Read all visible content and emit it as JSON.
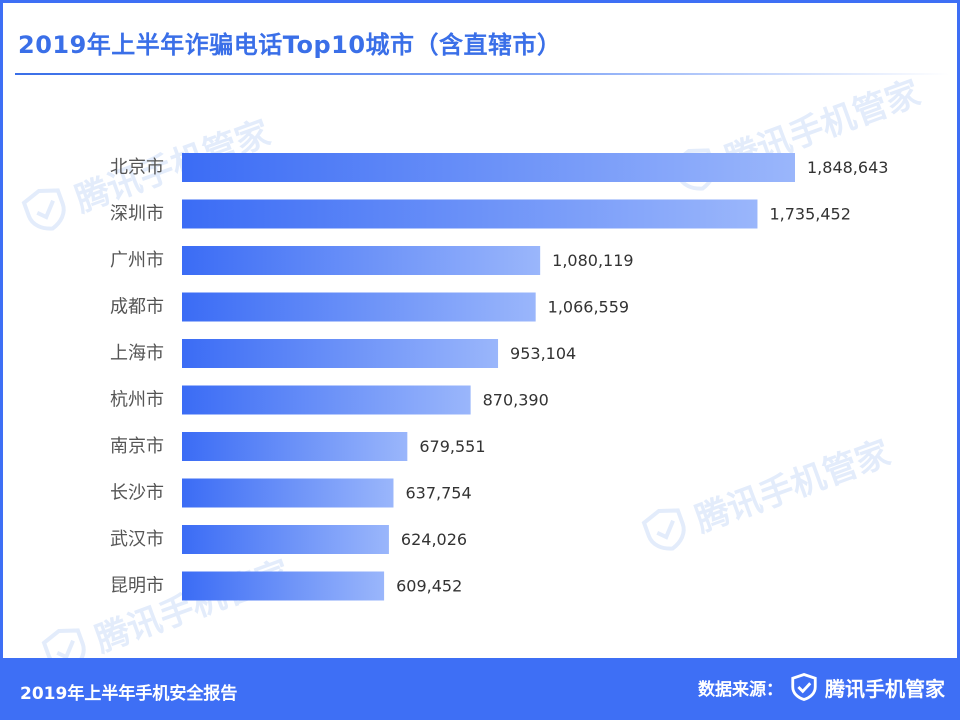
{
  "title": "2019年上半年诈骗电话Top10城市（含直辖市）",
  "footer": {
    "report": "2019年上半年手机安全报告",
    "source_label": "数据来源：",
    "brand": "腾讯手机管家"
  },
  "watermark_text": "腾讯手机管家",
  "colors": {
    "accent": "#3e6ff5",
    "bar_start": "#3b6cf5",
    "bar_end": "#9ab6fb"
  },
  "chart_data": {
    "type": "bar",
    "orientation": "horizontal",
    "categories": [
      "北京市",
      "深圳市",
      "广州市",
      "成都市",
      "上海市",
      "杭州市",
      "南京市",
      "长沙市",
      "武汉市",
      "昆明市"
    ],
    "values": [
      1848643,
      1735452,
      1080119,
      1066559,
      953104,
      870390,
      679551,
      637754,
      624026,
      609452
    ],
    "data_labels": [
      "1,848,643",
      "1,735,452",
      "1,080,119",
      "1,066,559",
      "953,104",
      "870,390",
      "679,551",
      "637,754",
      "624,026",
      "609,452"
    ],
    "xlim": [
      0,
      1848643
    ],
    "grid": false,
    "legend": "none"
  }
}
